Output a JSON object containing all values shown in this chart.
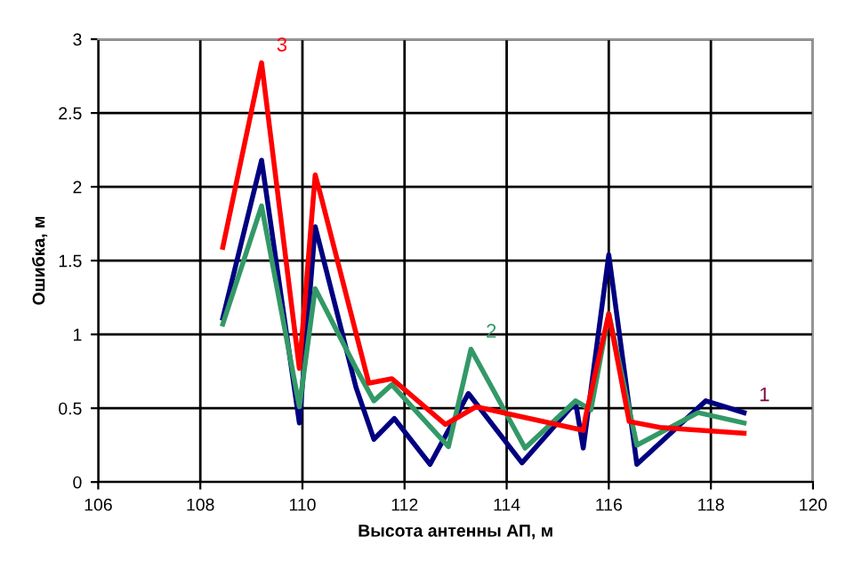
{
  "chart_data": {
    "type": "line",
    "xlabel": "Высота антенны АП, м",
    "ylabel": "Ошибка, м",
    "xlim": [
      106,
      120
    ],
    "xticks": [
      106,
      108,
      110,
      112,
      114,
      116,
      118,
      120
    ],
    "ylim": [
      0,
      3
    ],
    "yticks": [
      0,
      0.5,
      1,
      1.5,
      2,
      2.5,
      3
    ],
    "grid": true,
    "legend": false,
    "marker": "none",
    "line_style": "solid",
    "series": [
      {
        "color": "#000080",
        "x": [
          108.44,
          109.2,
          109.94,
          110.25,
          111.05,
          111.4,
          111.8,
          112.5,
          113.25,
          114.3,
          115.35,
          115.5,
          116.0,
          116.55,
          117.9,
          118.65
        ],
        "values": [
          1.11,
          2.18,
          0.4,
          1.73,
          0.64,
          0.29,
          0.43,
          0.12,
          0.6,
          0.13,
          0.54,
          0.23,
          1.54,
          0.12,
          0.55,
          0.47
        ]
      },
      {
        "color": "#339966",
        "x": [
          108.44,
          109.2,
          109.94,
          110.25,
          111.05,
          111.4,
          111.75,
          112.86,
          113.3,
          114.36,
          115.35,
          115.65,
          116.0,
          116.55,
          117.75,
          118.65
        ],
        "values": [
          1.07,
          1.87,
          0.51,
          1.31,
          0.77,
          0.55,
          0.66,
          0.24,
          0.9,
          0.23,
          0.55,
          0.49,
          1.14,
          0.25,
          0.47,
          0.4
        ]
      },
      {
        "color": "#ff0000",
        "x": [
          108.44,
          109.2,
          109.94,
          110.25,
          110.36,
          111.3,
          111.75,
          112.8,
          113.4,
          115.5,
          115.55,
          116.0,
          116.4,
          117.0,
          118.65
        ],
        "values": [
          1.59,
          2.84,
          0.77,
          2.08,
          1.94,
          0.67,
          0.7,
          0.39,
          0.51,
          0.35,
          0.45,
          1.14,
          0.41,
          0.37,
          0.33
        ]
      }
    ],
    "annotations": [
      {
        "text": "1",
        "x": 118.65,
        "y": 0.47
      },
      {
        "text": "2",
        "x": 113.3,
        "y": 0.9
      },
      {
        "text": "3",
        "x": 109.2,
        "y": 2.84
      }
    ]
  }
}
